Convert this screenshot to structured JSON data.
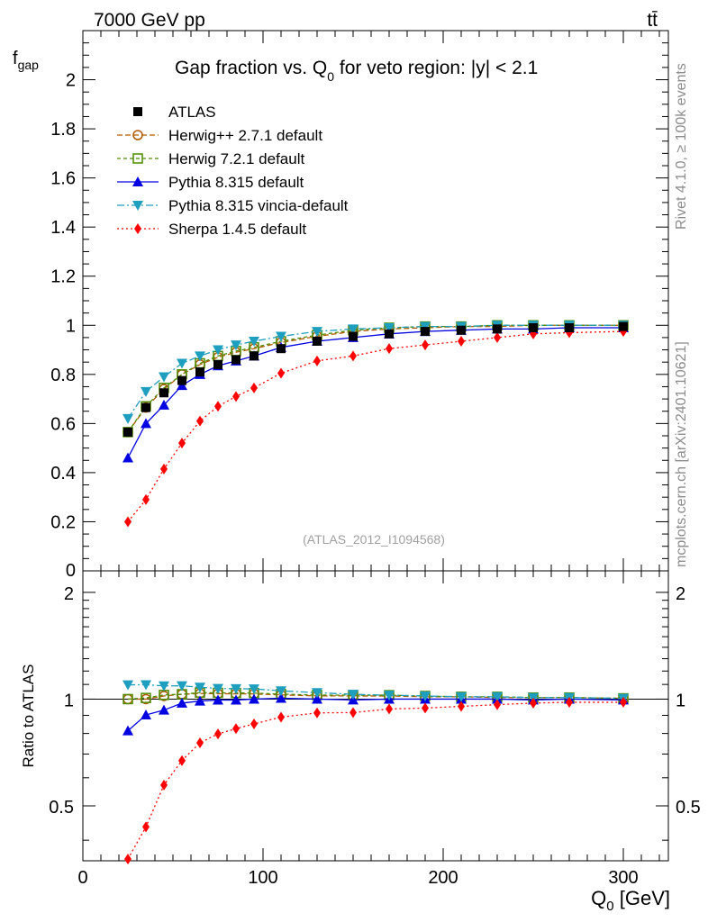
{
  "header": {
    "left": "7000 GeV pp",
    "right": "tt̄"
  },
  "side": {
    "rivet": "Rivet 4.1.0, ≥ 100k events",
    "mcplots": "mcplots.cern.ch [arXiv:2401.10621]"
  },
  "chart_data": {
    "type": "line",
    "title_main": "Gap fraction vs. Q",
    "title_sub": "0",
    "title_rest": " for veto region: |y| < 2.1",
    "analysis_id": "(ATLAS_2012_I1094568)",
    "ylabel_main": "f",
    "ylabel_sub": "gap",
    "ratio_ylabel": "Ratio to ATLAS",
    "xlabel_main": "Q",
    "xlabel_sub": "0",
    "xlabel_rest": " [GeV]",
    "xlim": [
      0,
      325
    ],
    "ylim": [
      0,
      2.2
    ],
    "ratio_ylim": [
      0.35,
      2.3
    ],
    "x_ticks": [
      "0",
      "100",
      "200",
      "300"
    ],
    "y_ticks": [
      "0",
      "0.2",
      "0.4",
      "0.6",
      "0.8",
      "1",
      "1.2",
      "1.4",
      "1.6",
      "1.8",
      "2"
    ],
    "ratio_ticks_left": [
      "0.5",
      "1",
      "2"
    ],
    "ratio_ticks_right": [
      "0.5",
      "1",
      "2"
    ],
    "x": [
      25,
      35,
      45,
      55,
      65,
      75,
      85,
      95,
      110,
      130,
      150,
      170,
      190,
      210,
      230,
      250,
      270,
      300
    ],
    "series": [
      {
        "name": "ATLAS",
        "color": "#000000",
        "marker": "square",
        "dash": "none",
        "values": [
          0.565,
          0.665,
          0.725,
          0.775,
          0.81,
          0.84,
          0.86,
          0.875,
          0.905,
          0.935,
          0.955,
          0.965,
          0.975,
          0.98,
          0.985,
          0.99,
          0.99,
          0.995
        ]
      },
      {
        "name": "Herwig++ 2.7.1 default",
        "color": "#b35900",
        "marker": "circle",
        "dash": "6,3",
        "values": [
          0.565,
          0.665,
          0.74,
          0.8,
          0.84,
          0.87,
          0.89,
          0.905,
          0.93,
          0.955,
          0.975,
          0.985,
          0.99,
          0.995,
          0.995,
          1.0,
          1.0,
          1.0
        ]
      },
      {
        "name": "Herwig 7.2.1 default",
        "color": "#4d8c00",
        "marker": "opensquare",
        "dash": "4,3",
        "values": [
          0.565,
          0.67,
          0.745,
          0.8,
          0.845,
          0.875,
          0.895,
          0.91,
          0.935,
          0.96,
          0.98,
          0.99,
          0.995,
          0.995,
          1.0,
          1.0,
          1.0,
          1.0
        ]
      },
      {
        "name": "Pythia 8.315 default",
        "color": "#0000e0",
        "marker": "triangle",
        "dash": "none",
        "values": [
          0.46,
          0.6,
          0.675,
          0.755,
          0.8,
          0.835,
          0.855,
          0.875,
          0.91,
          0.935,
          0.95,
          0.965,
          0.975,
          0.98,
          0.985,
          0.985,
          0.99,
          0.99
        ]
      },
      {
        "name": "Pythia 8.315 vincia-default",
        "color": "#1f9fbf",
        "marker": "triangledown",
        "dash": "8,3,2,3",
        "values": [
          0.62,
          0.73,
          0.79,
          0.845,
          0.875,
          0.9,
          0.92,
          0.935,
          0.955,
          0.975,
          0.985,
          0.99,
          0.995,
          0.995,
          1.0,
          1.0,
          1.0,
          1.0
        ]
      },
      {
        "name": "Sherpa 1.4.5 default",
        "color": "#ff0000",
        "marker": "diamond",
        "dash": "2,3",
        "values": [
          0.2,
          0.29,
          0.415,
          0.52,
          0.61,
          0.67,
          0.71,
          0.745,
          0.805,
          0.855,
          0.875,
          0.905,
          0.92,
          0.935,
          0.95,
          0.965,
          0.97,
          0.975
        ]
      }
    ]
  }
}
